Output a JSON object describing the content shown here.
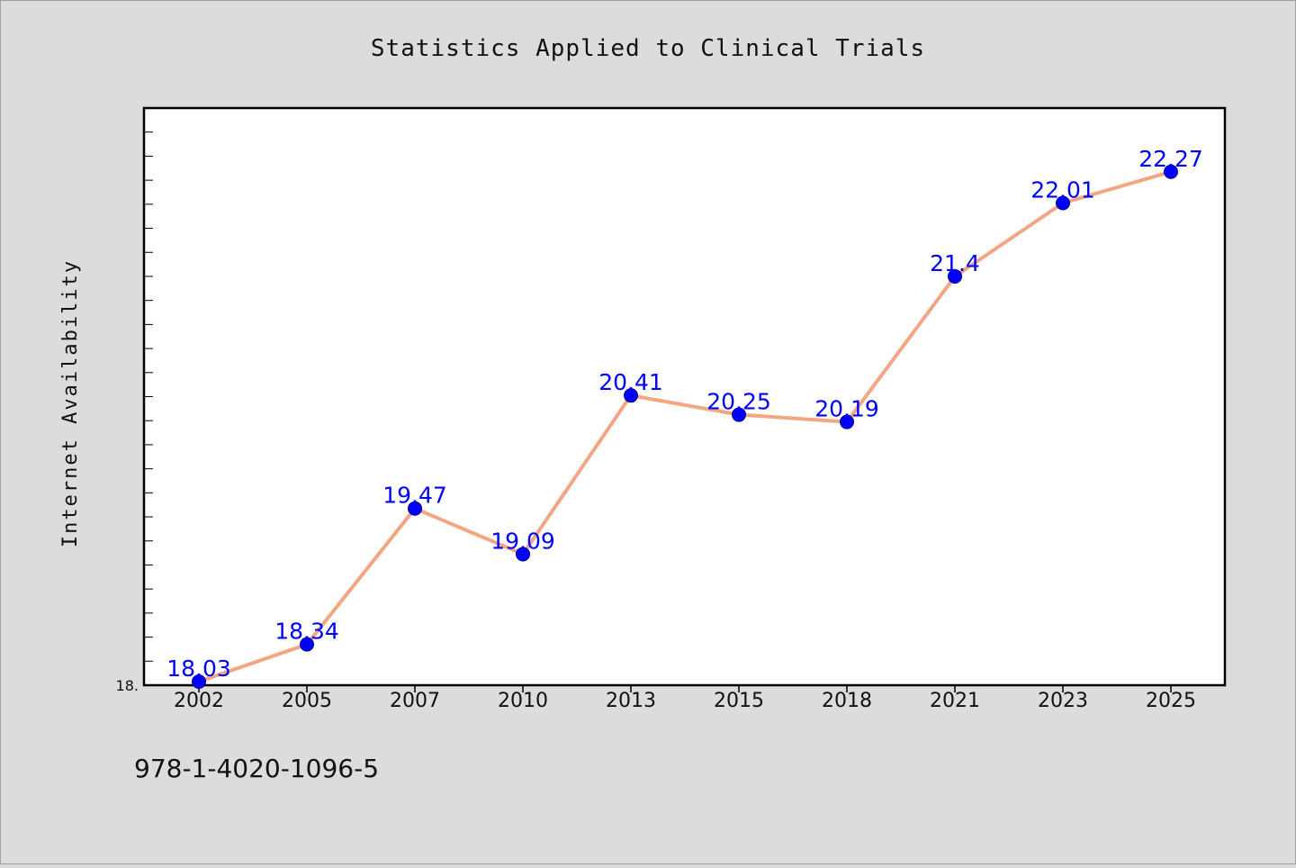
{
  "chart_data": {
    "type": "line",
    "title": "Statistics Applied to Clinical Trials",
    "xlabel": "",
    "ylabel": "Internet Availability",
    "categories": [
      "2002",
      "2005",
      "2007",
      "2010",
      "2013",
      "2015",
      "2018",
      "2021",
      "2023",
      "2025"
    ],
    "series": [
      {
        "values": [
          18.03,
          18.34,
          19.47,
          19.09,
          20.41,
          20.25,
          20.19,
          21.4,
          22.01,
          22.27
        ]
      }
    ],
    "y_tick_labels": [
      "18."
    ],
    "ylim": [
      18.0,
      22.8
    ],
    "grid": false,
    "line_color": "#f4a582",
    "marker_color": "#0000ff",
    "label_color": "#0000ff"
  },
  "footer_text": "978-1-4020-1096-5"
}
